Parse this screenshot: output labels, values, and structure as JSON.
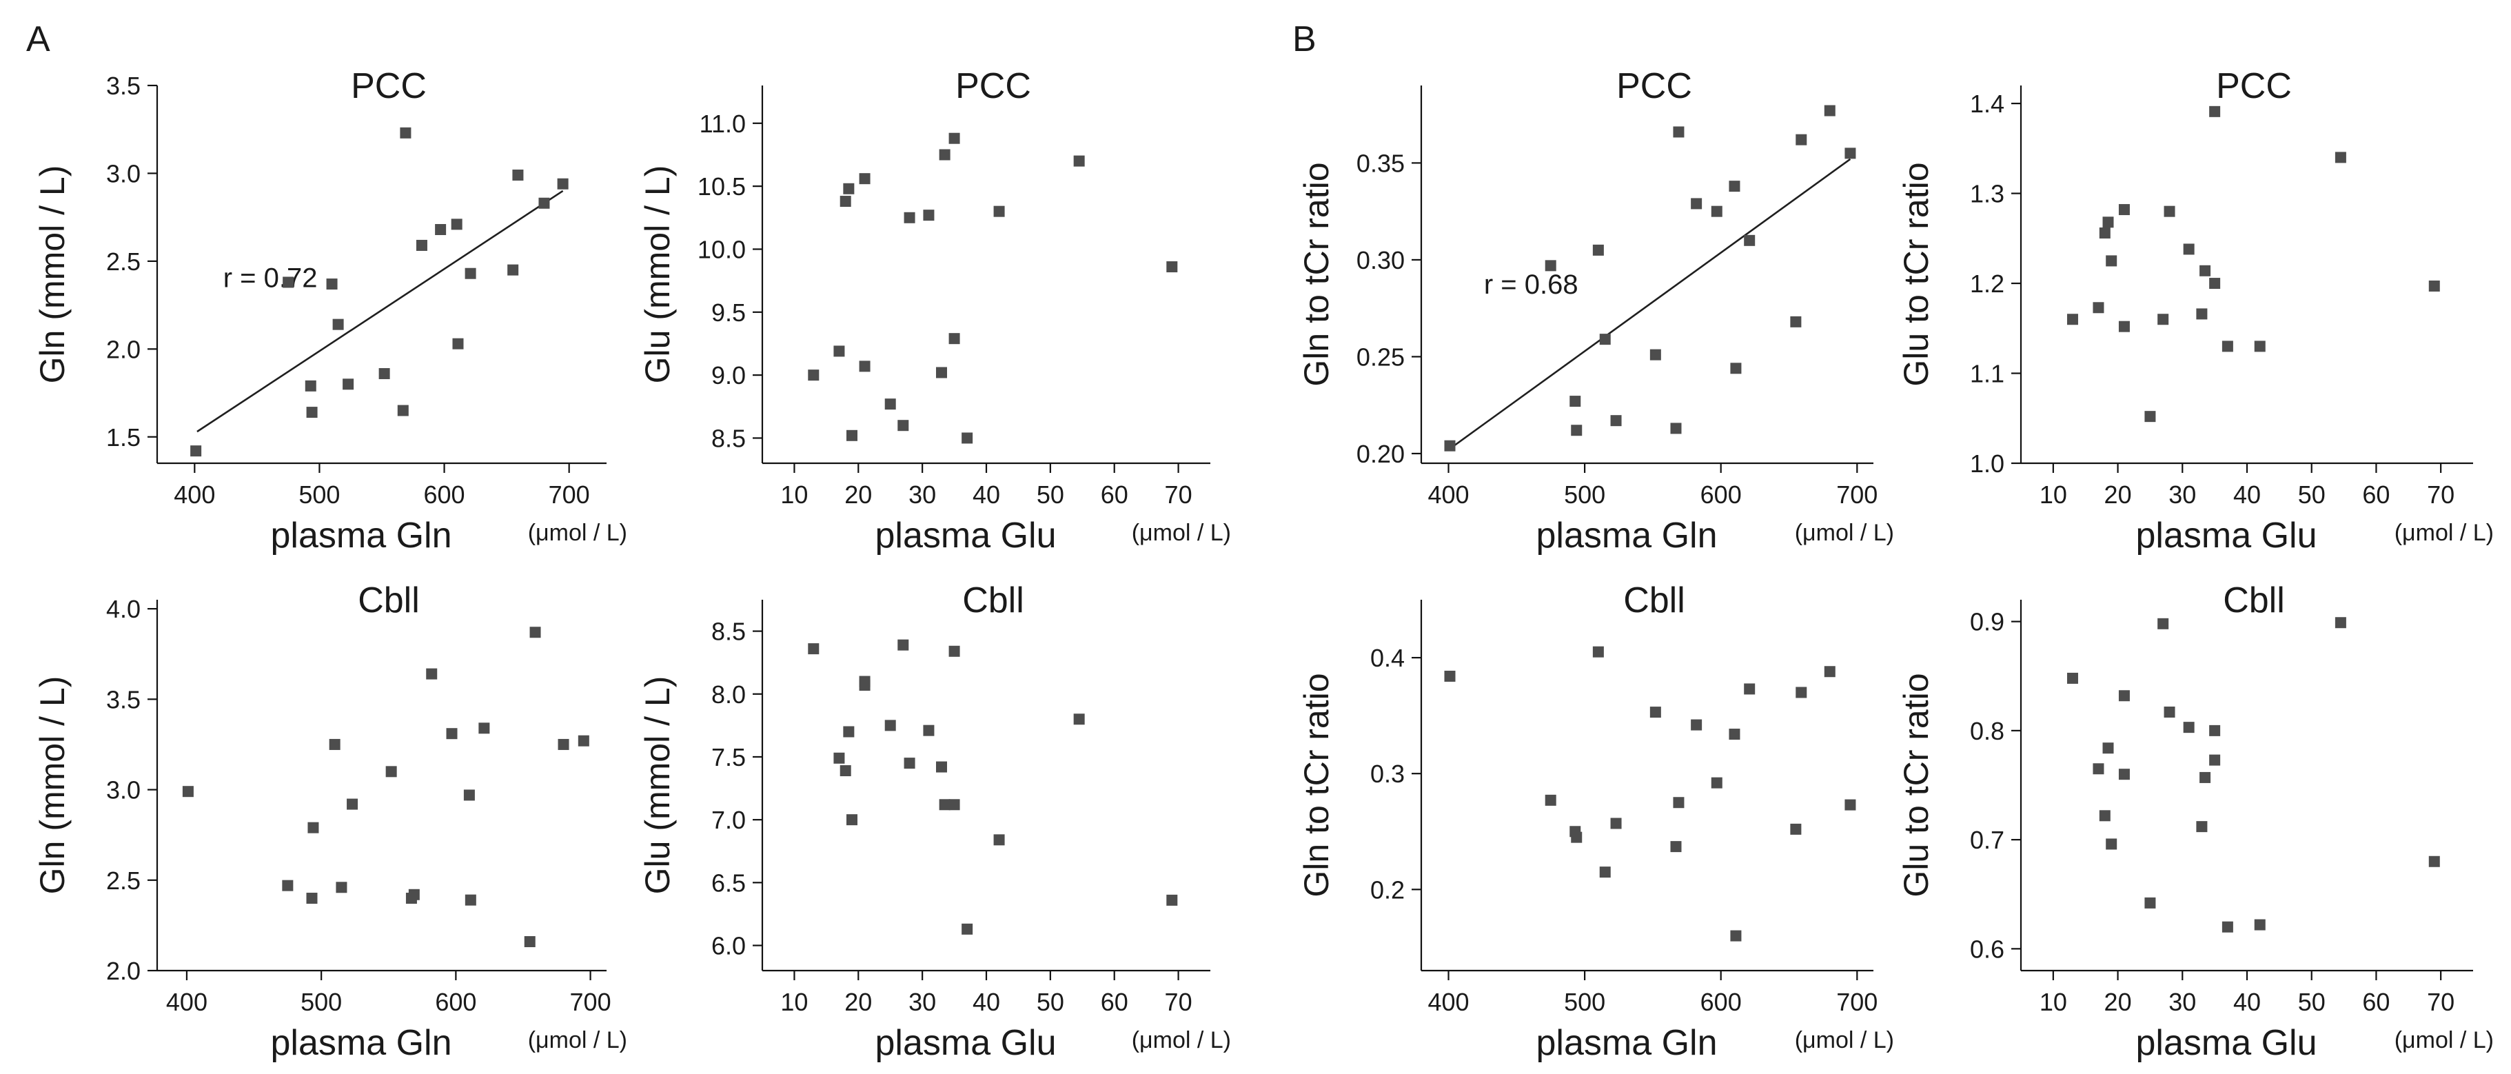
{
  "colors": {
    "point": "#4d4d4d",
    "axis": "#111111",
    "text": "#1a1a1a",
    "background": "#ffffff"
  },
  "panels": [
    {
      "id": "panel-a",
      "label": "A"
    },
    {
      "id": "panel-b",
      "label": "B"
    }
  ],
  "chart_data": [
    {
      "id": "a-pcc-gln",
      "type": "scatter",
      "panel": "A",
      "title": "PCC",
      "xlabel": "plasma Gln",
      "ylabel": "Gln (mmol / L)",
      "unit": "(μmol / L)",
      "xlim": [
        370,
        730
      ],
      "ylim": [
        1.35,
        3.5
      ],
      "xticks": [
        400,
        500,
        600,
        700
      ],
      "yticks": [
        1.5,
        2.0,
        2.5,
        3.0,
        3.5
      ],
      "xtick_labels": [
        "400",
        "500",
        "600",
        "700"
      ],
      "ytick_labels": [
        "1.5",
        "2.0",
        "2.5",
        "3.0",
        "3.5"
      ],
      "annotation": "r = 0.72",
      "fit_line": [
        [
          402,
          1.53
        ],
        [
          695,
          2.9
        ]
      ],
      "points": [
        [
          401,
          1.42
        ],
        [
          475,
          2.38
        ],
        [
          493,
          1.79
        ],
        [
          494,
          1.64
        ],
        [
          510,
          2.37
        ],
        [
          515,
          2.14
        ],
        [
          523,
          1.8
        ],
        [
          552,
          1.86
        ],
        [
          567,
          1.65
        ],
        [
          569,
          3.23
        ],
        [
          582,
          2.59
        ],
        [
          597,
          2.68
        ],
        [
          610,
          2.71
        ],
        [
          611,
          2.03
        ],
        [
          621,
          2.43
        ],
        [
          655,
          2.45
        ],
        [
          659,
          2.99
        ],
        [
          680,
          2.83
        ],
        [
          695,
          2.94
        ]
      ]
    },
    {
      "id": "a-pcc-glu",
      "type": "scatter",
      "panel": "A",
      "title": "PCC",
      "xlabel": "plasma Glu",
      "ylabel": "Glu (mmol / L)",
      "unit": "(μmol / L)",
      "xlim": [
        5,
        75
      ],
      "ylim": [
        8.3,
        11.3
      ],
      "xticks": [
        10,
        20,
        30,
        40,
        50,
        60,
        70
      ],
      "yticks": [
        8.5,
        9.0,
        9.5,
        10.0,
        10.5,
        11.0
      ],
      "xtick_labels": [
        "10",
        "20",
        "30",
        "40",
        "50",
        "60",
        "70"
      ],
      "ytick_labels": [
        "8.5",
        "9.0",
        "9.5",
        "10.0",
        "10.5",
        "11.0"
      ],
      "points": [
        [
          13,
          9.0
        ],
        [
          17,
          9.19
        ],
        [
          18,
          10.38
        ],
        [
          18.5,
          10.48
        ],
        [
          19,
          8.52
        ],
        [
          21,
          10.56
        ],
        [
          21,
          9.07
        ],
        [
          25,
          8.77
        ],
        [
          27,
          8.6
        ],
        [
          28,
          10.25
        ],
        [
          31,
          10.27
        ],
        [
          33,
          9.02
        ],
        [
          33.5,
          10.75
        ],
        [
          35,
          10.88
        ],
        [
          35,
          9.29
        ],
        [
          37,
          8.5
        ],
        [
          42,
          10.3
        ],
        [
          54.5,
          10.7
        ],
        [
          69,
          9.86
        ]
      ]
    },
    {
      "id": "a-cbll-gln",
      "type": "scatter",
      "panel": "A",
      "title": "Cbll",
      "xlabel": "plasma Gln",
      "ylabel": "Gln (mmol / L)",
      "unit": "(μmol / L)",
      "xlim": [
        378,
        712
      ],
      "ylim": [
        2.0,
        4.05
      ],
      "xticks": [
        400,
        500,
        600,
        700
      ],
      "yticks": [
        2.0,
        2.5,
        3.0,
        3.5,
        4.0
      ],
      "xtick_labels": [
        "400",
        "500",
        "600",
        "700"
      ],
      "ytick_labels": [
        "2.0",
        "2.5",
        "3.0",
        "3.5",
        "4.0"
      ],
      "points": [
        [
          401,
          2.99
        ],
        [
          475,
          2.47
        ],
        [
          493,
          2.4
        ],
        [
          494,
          2.79
        ],
        [
          510,
          3.25
        ],
        [
          515,
          2.46
        ],
        [
          523,
          2.92
        ],
        [
          552,
          3.1
        ],
        [
          567,
          2.4
        ],
        [
          569,
          2.42
        ],
        [
          582,
          3.64
        ],
        [
          597,
          3.31
        ],
        [
          610,
          2.97
        ],
        [
          611,
          2.39
        ],
        [
          621,
          3.34
        ],
        [
          655,
          2.16
        ],
        [
          659,
          3.87
        ],
        [
          680,
          3.25
        ],
        [
          695,
          3.27
        ]
      ]
    },
    {
      "id": "a-cbll-glu",
      "type": "scatter",
      "panel": "A",
      "title": "Cbll",
      "xlabel": "plasma Glu",
      "ylabel": "Glu (mmol / L)",
      "unit": "(μmol / L)",
      "xlim": [
        5,
        75
      ],
      "ylim": [
        5.8,
        8.75
      ],
      "xticks": [
        10,
        20,
        30,
        40,
        50,
        60,
        70
      ],
      "yticks": [
        6.0,
        6.5,
        7.0,
        7.5,
        8.0,
        8.5
      ],
      "xtick_labels": [
        "10",
        "20",
        "30",
        "40",
        "50",
        "60",
        "70"
      ],
      "ytick_labels": [
        "6.0",
        "6.5",
        "7.0",
        "7.5",
        "8.0",
        "8.5"
      ],
      "points": [
        [
          13,
          8.36
        ],
        [
          17,
          7.49
        ],
        [
          18,
          7.39
        ],
        [
          18.5,
          7.7
        ],
        [
          19,
          7.0
        ],
        [
          21,
          8.1
        ],
        [
          21,
          8.07
        ],
        [
          25,
          7.75
        ],
        [
          27,
          8.39
        ],
        [
          28,
          7.45
        ],
        [
          31,
          7.71
        ],
        [
          33,
          7.42
        ],
        [
          33.5,
          7.12
        ],
        [
          35,
          8.34
        ],
        [
          35,
          7.12
        ],
        [
          37,
          6.13
        ],
        [
          42,
          6.84
        ],
        [
          54.5,
          7.8
        ],
        [
          69,
          6.36
        ]
      ]
    },
    {
      "id": "b-pcc-gln",
      "type": "scatter",
      "panel": "B",
      "title": "PCC",
      "xlabel": "plasma Gln",
      "ylabel": "Gln to tCr ratio",
      "unit": "(μmol / L)",
      "xlim": [
        380,
        712
      ],
      "ylim": [
        0.195,
        0.39
      ],
      "xticks": [
        400,
        500,
        600,
        700
      ],
      "yticks": [
        0.2,
        0.25,
        0.3,
        0.35
      ],
      "xtick_labels": [
        "400",
        "500",
        "600",
        "700"
      ],
      "ytick_labels": [
        "0.20",
        "0.25",
        "0.30",
        "0.35"
      ],
      "annotation": "r = 0.68",
      "fit_line": [
        [
          402,
          0.203
        ],
        [
          695,
          0.352
        ]
      ],
      "points": [
        [
          401,
          0.204
        ],
        [
          475,
          0.297
        ],
        [
          493,
          0.227
        ],
        [
          494,
          0.212
        ],
        [
          510,
          0.305
        ],
        [
          515,
          0.259
        ],
        [
          523,
          0.217
        ],
        [
          552,
          0.251
        ],
        [
          567,
          0.213
        ],
        [
          569,
          0.366
        ],
        [
          582,
          0.329
        ],
        [
          597,
          0.325
        ],
        [
          610,
          0.338
        ],
        [
          611,
          0.244
        ],
        [
          621,
          0.31
        ],
        [
          655,
          0.268
        ],
        [
          659,
          0.362
        ],
        [
          680,
          0.377
        ],
        [
          695,
          0.355
        ]
      ]
    },
    {
      "id": "b-pcc-glu",
      "type": "scatter",
      "panel": "B",
      "title": "PCC",
      "xlabel": "plasma Glu",
      "ylabel": "Glu to tCr ratio",
      "unit": "(μmol / L)",
      "xlim": [
        5,
        75
      ],
      "ylim": [
        1.0,
        1.42
      ],
      "xticks": [
        10,
        20,
        30,
        40,
        50,
        60,
        70
      ],
      "yticks": [
        1.0,
        1.1,
        1.2,
        1.3,
        1.4
      ],
      "xtick_labels": [
        "10",
        "20",
        "30",
        "40",
        "50",
        "60",
        "70"
      ],
      "ytick_labels": [
        "1.0",
        "1.1",
        "1.2",
        "1.3",
        "1.4"
      ],
      "points": [
        [
          13,
          1.16
        ],
        [
          17,
          1.173
        ],
        [
          18,
          1.256
        ],
        [
          18.5,
          1.268
        ],
        [
          19,
          1.225
        ],
        [
          21,
          1.282
        ],
        [
          21,
          1.152
        ],
        [
          25,
          1.052
        ],
        [
          27,
          1.16
        ],
        [
          28,
          1.28
        ],
        [
          31,
          1.238
        ],
        [
          33,
          1.166
        ],
        [
          33.5,
          1.214
        ],
        [
          35,
          1.391
        ],
        [
          35,
          1.2
        ],
        [
          37,
          1.13
        ],
        [
          42,
          1.13
        ],
        [
          54.5,
          1.34
        ],
        [
          69,
          1.197
        ]
      ]
    },
    {
      "id": "b-cbll-gln",
      "type": "scatter",
      "panel": "B",
      "title": "Cbll",
      "xlabel": "plasma Gln",
      "ylabel": "Gln to tCr ratio",
      "unit": "(μmol / L)",
      "xlim": [
        380,
        712
      ],
      "ylim": [
        0.13,
        0.45
      ],
      "xticks": [
        400,
        500,
        600,
        700
      ],
      "yticks": [
        0.2,
        0.3,
        0.4
      ],
      "xtick_labels": [
        "400",
        "500",
        "600",
        "700"
      ],
      "ytick_labels": [
        "0.2",
        "0.3",
        "0.4"
      ],
      "points": [
        [
          401,
          0.384
        ],
        [
          475,
          0.277
        ],
        [
          493,
          0.25
        ],
        [
          494,
          0.245
        ],
        [
          510,
          0.405
        ],
        [
          515,
          0.215
        ],
        [
          523,
          0.257
        ],
        [
          552,
          0.353
        ],
        [
          567,
          0.237
        ],
        [
          569,
          0.275
        ],
        [
          582,
          0.342
        ],
        [
          597,
          0.292
        ],
        [
          610,
          0.334
        ],
        [
          611,
          0.16
        ],
        [
          621,
          0.373
        ],
        [
          655,
          0.252
        ],
        [
          659,
          0.37
        ],
        [
          680,
          0.388
        ],
        [
          695,
          0.273
        ]
      ]
    },
    {
      "id": "b-cbll-glu",
      "type": "scatter",
      "panel": "B",
      "title": "Cbll",
      "xlabel": "plasma Glu",
      "ylabel": "Glu to tCr ratio",
      "unit": "(μmol / L)",
      "xlim": [
        5,
        75
      ],
      "ylim": [
        0.58,
        0.92
      ],
      "xticks": [
        10,
        20,
        30,
        40,
        50,
        60,
        70
      ],
      "yticks": [
        0.6,
        0.7,
        0.8,
        0.9
      ],
      "xtick_labels": [
        "10",
        "20",
        "30",
        "40",
        "50",
        "60",
        "70"
      ],
      "ytick_labels": [
        "0.6",
        "0.7",
        "0.8",
        "0.9"
      ],
      "points": [
        [
          13,
          0.848
        ],
        [
          17,
          0.765
        ],
        [
          18,
          0.722
        ],
        [
          18.5,
          0.784
        ],
        [
          19,
          0.696
        ],
        [
          21,
          0.832
        ],
        [
          21,
          0.76
        ],
        [
          25,
          0.642
        ],
        [
          27,
          0.898
        ],
        [
          28,
          0.817
        ],
        [
          31,
          0.803
        ],
        [
          33,
          0.712
        ],
        [
          33.5,
          0.757
        ],
        [
          35,
          0.8
        ],
        [
          35,
          0.773
        ],
        [
          37,
          0.62
        ],
        [
          42,
          0.622
        ],
        [
          54.5,
          0.899
        ],
        [
          69,
          0.68
        ]
      ]
    }
  ]
}
